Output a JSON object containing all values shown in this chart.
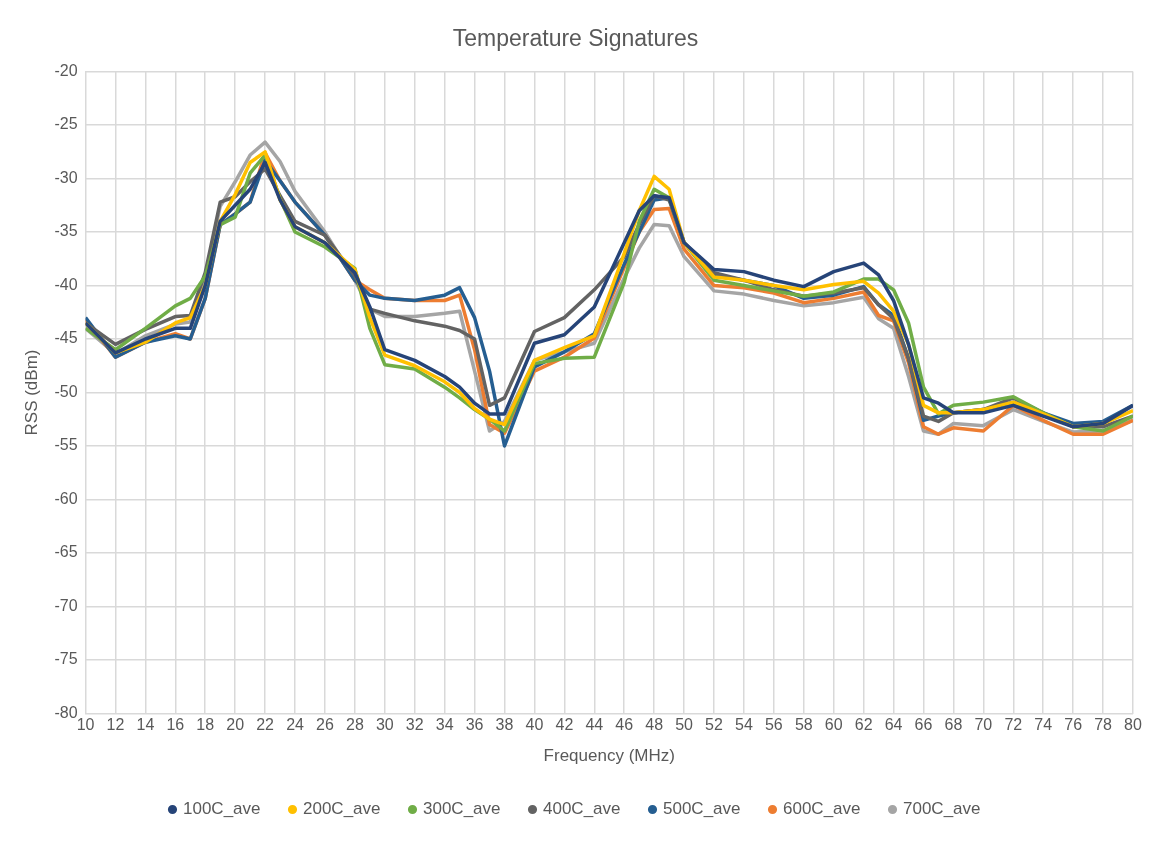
{
  "chart_data": {
    "type": "line",
    "title": "Temperature Signatures",
    "xlabel": "Frequency (MHz)",
    "ylabel": "RSS (dBm)",
    "x": [
      10,
      12,
      14,
      16,
      17,
      18,
      19,
      20,
      21,
      22,
      23,
      24,
      26,
      28,
      29,
      30,
      32,
      34,
      35,
      36,
      37,
      38,
      40,
      42,
      44,
      46,
      47,
      48,
      49,
      50,
      52,
      54,
      56,
      58,
      60,
      62,
      63,
      64,
      65,
      66,
      67,
      68,
      70,
      72,
      74,
      76,
      78,
      80
    ],
    "xlim": [
      10,
      80
    ],
    "xticks": [
      10,
      12,
      14,
      16,
      18,
      20,
      22,
      24,
      26,
      28,
      30,
      32,
      34,
      36,
      38,
      40,
      42,
      44,
      46,
      48,
      50,
      52,
      54,
      56,
      58,
      60,
      62,
      64,
      66,
      68,
      70,
      72,
      74,
      76,
      78,
      80
    ],
    "ylim": [
      -80,
      -20
    ],
    "yticks": [
      -80,
      -75,
      -70,
      -65,
      -60,
      -55,
      -50,
      -45,
      -40,
      -35,
      -30,
      -25,
      -20
    ],
    "grid": true,
    "legend": "bottom",
    "series": [
      {
        "name": "100C_ave",
        "color": "#264478",
        "values": [
          -43.5,
          -46.3,
          -45,
          -44,
          -44,
          -40,
          -34,
          -32.5,
          -31,
          -28.5,
          -32,
          -34.5,
          -36,
          -38.8,
          -42,
          -46,
          -47,
          -48.5,
          -49.5,
          -51,
          -52,
          -52,
          -45.4,
          -44.6,
          -42,
          -36,
          -33,
          -31.6,
          -31.8,
          -36,
          -38.5,
          -38.7,
          -39.5,
          -40.1,
          -38.7,
          -37.9,
          -39,
          -41.4,
          -45.5,
          -50.5,
          -51,
          -51.9,
          -51.9,
          -51.2,
          -52.2,
          -53.2,
          -52.9,
          -51.2
        ]
      },
      {
        "name": "200C_ave",
        "color": "#ffc000",
        "values": [
          -43.5,
          -46.3,
          -45.3,
          -43.5,
          -43,
          -40,
          -34,
          -31.5,
          -28.5,
          -27.5,
          -32,
          -34.5,
          -36,
          -38.5,
          -43,
          -46.5,
          -47.5,
          -49,
          -50,
          -51.5,
          -52.5,
          -53,
          -47,
          -45.8,
          -44.7,
          -37,
          -33,
          -29.8,
          -31,
          -36,
          -39.2,
          -39.5,
          -40,
          -40.4,
          -39.9,
          -39.6,
          -40.7,
          -42.4,
          -45.5,
          -51.2,
          -51.9,
          -51.9,
          -51.6,
          -50.9,
          -52,
          -53.2,
          -52.9,
          -51.7
        ]
      },
      {
        "name": "300C_ave",
        "color": "#70ad47",
        "values": [
          -44,
          -46,
          -44,
          -41.9,
          -41.2,
          -39.1,
          -34.3,
          -33.6,
          -29.5,
          -27.8,
          -31.9,
          -35,
          -36.4,
          -38.4,
          -44,
          -47.4,
          -47.8,
          -49.5,
          -50.5,
          -51.6,
          -52.5,
          -53.6,
          -47.3,
          -46.8,
          -46.7,
          -39.7,
          -34,
          -31,
          -31.8,
          -36,
          -39.5,
          -40,
          -40.5,
          -41,
          -40.6,
          -39.4,
          -39.4,
          -40.4,
          -43.5,
          -49.5,
          -52,
          -51.2,
          -50.9,
          -50.4,
          -51.9,
          -53.2,
          -53.6,
          -52.2
        ]
      },
      {
        "name": "400C_ave",
        "color": "#636363",
        "values": [
          -43.5,
          -45.5,
          -44.1,
          -42.9,
          -42.8,
          -38.8,
          -32.2,
          -31.7,
          -30.3,
          -29.1,
          -31.6,
          -34,
          -35.3,
          -39.1,
          -42.2,
          -42.6,
          -43.3,
          -43.8,
          -44.2,
          -45,
          -51.2,
          -50.5,
          -44.3,
          -43,
          -40.4,
          -37.3,
          -34.3,
          -31.6,
          -32,
          -36,
          -38.8,
          -39.5,
          -40.4,
          -41,
          -40.7,
          -40.2,
          -41.8,
          -43.1,
          -46.8,
          -52.2,
          -52.7,
          -51.9,
          -51.6,
          -50.5,
          -51.9,
          -53.2,
          -53.2,
          -52.2
        ]
      },
      {
        "name": "500C_ave",
        "color": "#255e91",
        "values": [
          -43,
          -46.7,
          -45.3,
          -44.7,
          -45,
          -41.2,
          -34.3,
          -33.3,
          -32.2,
          -28.3,
          -30.2,
          -32.2,
          -35.3,
          -39.5,
          -40.9,
          -41.2,
          -41.4,
          -40.9,
          -40.2,
          -43,
          -48,
          -55,
          -47.6,
          -46.2,
          -44.5,
          -38,
          -35,
          -32,
          -31.8,
          -36,
          -39,
          -39.5,
          -40,
          -41.2,
          -40.9,
          -40.1,
          -41.8,
          -42.8,
          -46.8,
          -52.6,
          -52.2,
          -51.9,
          -51.6,
          -50.9,
          -51.9,
          -52.9,
          -52.7,
          -51.2
        ]
      },
      {
        "name": "600C_ave",
        "color": "#ed7d31",
        "values": [
          -43.2,
          -46.7,
          -45.3,
          -44.5,
          -45,
          -41.2,
          -34.3,
          -33.3,
          -32.2,
          -27.6,
          -30.2,
          -32.2,
          -35.3,
          -39.5,
          -40.4,
          -41.2,
          -41.4,
          -41.4,
          -40.9,
          -46,
          -53,
          -53.8,
          -48,
          -46.7,
          -44.9,
          -38.3,
          -35,
          -32.9,
          -32.8,
          -36.6,
          -40,
          -40.2,
          -40.7,
          -41.6,
          -41.2,
          -40.6,
          -42.8,
          -43.3,
          -47.2,
          -53.2,
          -53.9,
          -53.3,
          -53.6,
          -51.2,
          -52.6,
          -53.9,
          -53.9,
          -52.6
        ]
      },
      {
        "name": "700C_ave",
        "color": "#a5a5a5",
        "values": [
          -44,
          -46.4,
          -44.7,
          -43.6,
          -43.4,
          -39.1,
          -32.6,
          -30.3,
          -27.8,
          -26.6,
          -28.4,
          -31.2,
          -35,
          -39.5,
          -42.2,
          -42.9,
          -42.9,
          -42.6,
          -42.4,
          -48,
          -53.6,
          -52.7,
          -47,
          -46.2,
          -45.4,
          -39.3,
          -36.5,
          -34.3,
          -34.4,
          -37.3,
          -40.5,
          -40.8,
          -41.4,
          -41.9,
          -41.6,
          -41.1,
          -43.1,
          -44,
          -48.5,
          -53.6,
          -53.9,
          -52.9,
          -53.1,
          -51.6,
          -52.7,
          -53.7,
          -53.6,
          -52.6
        ]
      }
    ]
  }
}
